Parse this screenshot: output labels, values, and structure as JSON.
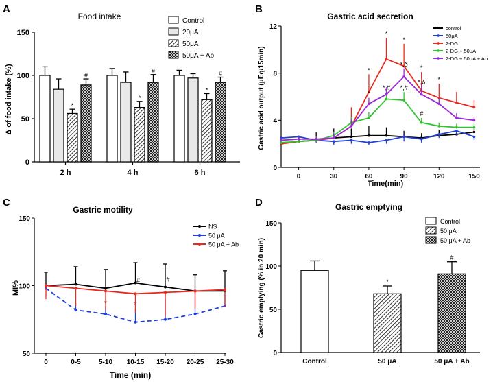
{
  "chart_data": [
    {
      "panel": "A",
      "type": "bar",
      "title": "Food intake",
      "ylabel": "Δ of food intake (%)",
      "xlabel": "",
      "ylim": [
        0,
        150
      ],
      "yticks": [
        0,
        50,
        100,
        150
      ],
      "categories": [
        "2 h",
        "4 h",
        "6 h"
      ],
      "series": [
        {
          "name": "Control",
          "values": [
            100,
            100,
            100
          ],
          "errors": [
            10,
            8,
            6
          ],
          "marks": [
            "",
            "",
            ""
          ]
        },
        {
          "name": "20μA",
          "values": [
            84,
            92,
            97
          ],
          "errors": [
            12,
            12,
            5
          ],
          "marks": [
            "",
            "",
            ""
          ]
        },
        {
          "name": "50μA",
          "values": [
            56,
            63,
            72
          ],
          "errors": [
            5,
            7,
            7
          ],
          "marks": [
            "*",
            "*",
            "*"
          ]
        },
        {
          "name": "50μA + Ab",
          "values": [
            89,
            92,
            92
          ],
          "errors": [
            7,
            9,
            6
          ],
          "marks": [
            "#",
            "#",
            "#"
          ]
        }
      ],
      "colors": {
        "Control": "#ffffff",
        "20μA": "#e8e8e8",
        "50μA": "hatch",
        "50μA + Ab": "cross"
      }
    },
    {
      "panel": "B",
      "type": "line",
      "title": "Gastric acid secretion",
      "ylabel": "Gastric acid output (μEq/15min)",
      "xlabel": "Time(min)",
      "xticks": [
        0,
        30,
        60,
        90,
        120,
        150
      ],
      "yticks": [
        0,
        4,
        8,
        12
      ],
      "xlim": [
        -15,
        155
      ],
      "ylim": [
        0,
        12
      ],
      "x": [
        -15,
        0,
        15,
        30,
        45,
        60,
        75,
        90,
        105,
        120,
        135,
        150
      ],
      "series": [
        {
          "name": "control",
          "color": "#000000",
          "values": [
            2.0,
            2.2,
            2.3,
            2.5,
            2.6,
            2.7,
            2.7,
            2.6,
            2.5,
            2.7,
            2.8,
            3.0
          ],
          "errors": [
            0.3,
            0.5,
            0.7,
            0.8,
            0.7,
            0.8,
            0.7,
            0.5,
            0.4,
            0.5,
            0.4,
            0.4
          ]
        },
        {
          "name": "50μA",
          "color": "#1f3fd6",
          "values": [
            2.5,
            2.6,
            2.3,
            2.2,
            2.3,
            2.1,
            2.3,
            2.6,
            2.4,
            2.8,
            3.1,
            2.6
          ],
          "errors": [
            0.2,
            0.2,
            0.2,
            0.3,
            0.3,
            0.2,
            0.3,
            0.4,
            0.3,
            0.3,
            0.4,
            0.3
          ]
        },
        {
          "name": "2-DG",
          "color": "#e8281e",
          "values": [
            2.0,
            2.2,
            2.3,
            2.5,
            3.5,
            6.4,
            9.2,
            8.6,
            6.5,
            5.9,
            5.5,
            5.1
          ],
          "errors": [
            0.2,
            0.3,
            0.3,
            0.5,
            1.6,
            1.5,
            1.8,
            1.9,
            1.6,
            1.2,
            0.9,
            0.6
          ],
          "marks": [
            "",
            "",
            "",
            "",
            "",
            "*",
            "*",
            "*",
            "*",
            "*",
            "",
            ""
          ]
        },
        {
          "name": "2-DG + 50μA",
          "color": "#2fc42f",
          "values": [
            2.1,
            2.2,
            2.3,
            2.7,
            3.8,
            4.2,
            5.8,
            5.7,
            3.8,
            3.5,
            3.4,
            3.4
          ],
          "errors": [
            0.2,
            0.3,
            0.3,
            0.3,
            0.5,
            0.5,
            0.6,
            0.7,
            0.4,
            0.3,
            0.3,
            0.3
          ],
          "marks": [
            "",
            "",
            "",
            "",
            "",
            "",
            "*,#",
            "*,#",
            "#",
            "",
            "",
            ""
          ]
        },
        {
          "name": "2-DG + 50μA + Ab",
          "color": "#9b28d6",
          "values": [
            2.3,
            2.4,
            2.4,
            2.5,
            3.5,
            5.4,
            6.2,
            7.7,
            6.2,
            5.4,
            4.2,
            4.0
          ],
          "errors": [
            0.2,
            0.2,
            0.2,
            0.4,
            0.6,
            0.5,
            0.6,
            0.7,
            0.7,
            0.5,
            0.4,
            0.3
          ],
          "marks": [
            "",
            "",
            "",
            "",
            "",
            "*",
            "",
            "*,δ",
            "*,δ",
            "",
            "",
            ""
          ]
        }
      ]
    },
    {
      "panel": "C",
      "type": "line",
      "title": "Gastric motility",
      "ylabel": "MI%",
      "xlabel": "Time (min)",
      "categories": [
        "0",
        "0-5",
        "5-10",
        "10-15",
        "15-20",
        "20-25",
        "25-30"
      ],
      "yticks": [
        50,
        100,
        150
      ],
      "ylim": [
        50,
        150
      ],
      "series": [
        {
          "name": "NS",
          "color": "#000000",
          "dash": false,
          "values": [
            100,
            101,
            98,
            102,
            99,
            96,
            96
          ],
          "errors": [
            10,
            13,
            14,
            15,
            17,
            12,
            15
          ],
          "marks": [
            "",
            "",
            "",
            "",
            "",
            "",
            ""
          ]
        },
        {
          "name": "50 μA",
          "color": "#1f3fd6",
          "dash": true,
          "values": [
            98,
            82,
            79,
            73,
            75,
            79,
            85
          ],
          "errors": [
            3,
            5,
            5,
            10,
            15,
            18,
            13
          ],
          "marks": [
            "",
            "",
            "*",
            "*",
            "",
            "",
            ""
          ]
        },
        {
          "name": "50 μA + Ab",
          "color": "#e8281e",
          "dash": false,
          "values": [
            100,
            98,
            96,
            94,
            95,
            96,
            97
          ],
          "errors": [
            10,
            13,
            14,
            14,
            18,
            13,
            13
          ],
          "marks": [
            "",
            "",
            "",
            "#",
            "#",
            "",
            ""
          ]
        }
      ]
    },
    {
      "panel": "D",
      "type": "bar",
      "title": "Gastric emptying",
      "ylabel": "Gastric emptying  (% in 20 min)",
      "xlabel": "",
      "categories": [
        "Control",
        "50 μA",
        "50 μA + Ab"
      ],
      "values": [
        95,
        68,
        91
      ],
      "errors": [
        11,
        9,
        14
      ],
      "marks": [
        "",
        "*",
        "#"
      ],
      "legend": [
        "Control",
        "50 μA",
        "50 μA + Ab"
      ],
      "ylim": [
        0,
        150
      ],
      "yticks": [
        0,
        50,
        100,
        150
      ]
    }
  ],
  "panel_labels": [
    "A",
    "B",
    "C",
    "D"
  ]
}
